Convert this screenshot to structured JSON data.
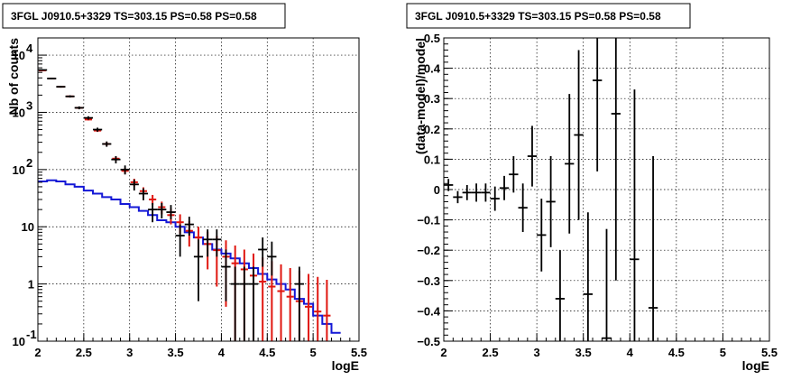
{
  "colors": {
    "data": "#000000",
    "model_total": "#e0160f",
    "background_model": "#1418d6"
  },
  "chart_data": [
    {
      "type": "line",
      "title": "3FGL J0910.5+3329 TS=303.15 PS=0.58 PS=0.58",
      "xlabel": "logE",
      "ylabel": "Nb of counts",
      "xlim": [
        2,
        5.5
      ],
      "ylim": [
        0.1,
        20000
      ],
      "ylog": true,
      "grid": true,
      "x_ticks": [
        "2",
        "2.5",
        "3",
        "3.5",
        "4",
        "4.5",
        "5",
        "5.5"
      ],
      "y_ticks": [
        {
          "value": 0.1,
          "base": "10",
          "exp": "-1"
        },
        {
          "value": 1,
          "base": "1",
          "exp": ""
        },
        {
          "value": 10,
          "base": "10",
          "exp": ""
        },
        {
          "value": 100,
          "base": "10",
          "exp": "2"
        },
        {
          "value": 1000,
          "base": "10",
          "exp": "3"
        },
        {
          "value": 10000,
          "base": "10",
          "exp": "4"
        }
      ],
      "bin_half_width": 0.05,
      "series": [
        {
          "role": "data",
          "x": [
            2.05,
            2.15,
            2.25,
            2.35,
            2.45,
            2.55,
            2.65,
            2.75,
            2.85,
            2.95,
            3.05,
            3.15,
            3.25,
            3.35,
            3.45,
            3.55,
            3.65,
            3.75,
            3.85,
            3.95,
            4.05,
            4.15,
            4.25,
            4.35,
            4.45,
            4.55,
            4.85
          ],
          "y": [
            5500,
            3900,
            2800,
            1900,
            1200,
            800,
            500,
            280,
            150,
            100,
            55,
            38,
            20,
            20,
            18,
            7,
            11,
            3,
            6,
            6,
            2,
            1,
            1,
            1,
            4,
            3,
            1
          ],
          "err_lo": [
            150,
            120,
            100,
            85,
            70,
            55,
            40,
            30,
            22,
            18,
            12,
            9,
            8,
            6,
            4.5,
            4,
            4,
            2.5,
            3,
            3,
            1.5,
            0.9,
            0.9,
            0.9,
            2,
            1.6,
            0.9
          ],
          "err_hi": [
            150,
            120,
            100,
            85,
            70,
            55,
            40,
            30,
            22,
            18,
            12,
            9,
            6,
            6,
            6,
            4,
            4,
            3,
            3,
            3,
            2,
            1,
            1,
            1,
            2.5,
            2.5,
            1
          ]
        },
        {
          "role": "model_total",
          "x": [
            2.05,
            2.15,
            2.25,
            2.35,
            2.45,
            2.55,
            2.65,
            2.75,
            2.85,
            2.95,
            3.05,
            3.15,
            3.25,
            3.35,
            3.45,
            3.55,
            3.65,
            3.75,
            3.85,
            3.95,
            4.05,
            4.15,
            4.25,
            4.35,
            4.45,
            4.55,
            4.65,
            4.75,
            4.85,
            4.95,
            5.05,
            5.15
          ],
          "y": [
            5400,
            3900,
            2800,
            1900,
            1200,
            750,
            480,
            280,
            155,
            95,
            60,
            42,
            30,
            22,
            16,
            12,
            8.5,
            6.5,
            5,
            3.9,
            3,
            2.3,
            1.8,
            1.4,
            1.1,
            0.9,
            0.75,
            0.6,
            0.5,
            0.4,
            0.33,
            0.28
          ],
          "err_lo": [
            90,
            75,
            60,
            50,
            40,
            30,
            25,
            20,
            14,
            11,
            9,
            7,
            6,
            5.5,
            5,
            4.5,
            4,
            3.5,
            3.2,
            3,
            2.6,
            2.2,
            1.75,
            1.35,
            1.05,
            0.86,
            0.72,
            0.58,
            0.48,
            0.39,
            0.32,
            0.27
          ],
          "err_hi": [
            90,
            75,
            60,
            50,
            40,
            30,
            25,
            20,
            14,
            11,
            9,
            7,
            6,
            5.5,
            5,
            4.5,
            4,
            3.5,
            3.2,
            3,
            2.8,
            2.4,
            2.2,
            2,
            1.8,
            1.6,
            1.45,
            1.3,
            1.2,
            1.1,
            1,
            0.9
          ]
        },
        {
          "role": "background_model",
          "x": [
            2.05,
            2.15,
            2.25,
            2.35,
            2.45,
            2.55,
            2.65,
            2.75,
            2.85,
            2.95,
            3.05,
            3.15,
            3.25,
            3.35,
            3.45,
            3.55,
            3.65,
            3.75,
            3.85,
            3.95,
            4.05,
            4.15,
            4.25,
            4.35,
            4.45,
            4.55,
            4.65,
            4.75,
            4.85,
            4.95,
            5.05,
            5.15,
            5.25
          ],
          "y": [
            62,
            65,
            62,
            55,
            50,
            43,
            38,
            33,
            30,
            25,
            22,
            19,
            16,
            13,
            12,
            10,
            8,
            6.5,
            5,
            4,
            3.4,
            2.8,
            2.3,
            1.9,
            1.5,
            1.2,
            1,
            0.8,
            0.55,
            0.45,
            0.28,
            0.2,
            0.14
          ]
        }
      ]
    },
    {
      "type": "scatter",
      "title": "3FGL J0910.5+3329 TS=303.15 PS=0.58 PS=0.58",
      "xlabel": "logE",
      "ylabel": "(data-model)/model",
      "xlim": [
        2,
        5.5
      ],
      "ylim": [
        -0.5,
        0.5
      ],
      "grid": true,
      "x_ticks": [
        "2",
        "2.5",
        "3",
        "3.5",
        "4",
        "4.5",
        "5",
        "5.5"
      ],
      "y_ticks": [
        "−0.5",
        "−0.4",
        "−0.3",
        "−0.2",
        "−0.1",
        "0",
        "0.1",
        "0.2",
        "0.3",
        "0.4",
        "0.5"
      ],
      "bin_half_width": 0.05,
      "series": [
        {
          "role": "data",
          "x": [
            2.05,
            2.15,
            2.25,
            2.35,
            2.45,
            2.55,
            2.65,
            2.75,
            2.85,
            2.95,
            3.05,
            3.15,
            3.25,
            3.35,
            3.45,
            3.55,
            3.65,
            3.75,
            3.85,
            4.05,
            4.25
          ],
          "y": [
            0.015,
            -0.025,
            -0.01,
            -0.01,
            -0.01,
            -0.03,
            0.005,
            0.05,
            -0.06,
            0.11,
            -0.15,
            -0.04,
            -0.36,
            0.085,
            0.18,
            -0.345,
            0.36,
            -0.49,
            0.25,
            -0.23,
            -0.39
          ],
          "err": [
            0.02,
            0.02,
            0.025,
            0.03,
            0.03,
            0.04,
            0.04,
            0.06,
            0.08,
            0.1,
            0.12,
            0.15,
            0.16,
            0.23,
            0.28,
            0.27,
            0.3,
            0.36,
            0.55,
            0.56,
            0.5
          ]
        }
      ]
    }
  ]
}
